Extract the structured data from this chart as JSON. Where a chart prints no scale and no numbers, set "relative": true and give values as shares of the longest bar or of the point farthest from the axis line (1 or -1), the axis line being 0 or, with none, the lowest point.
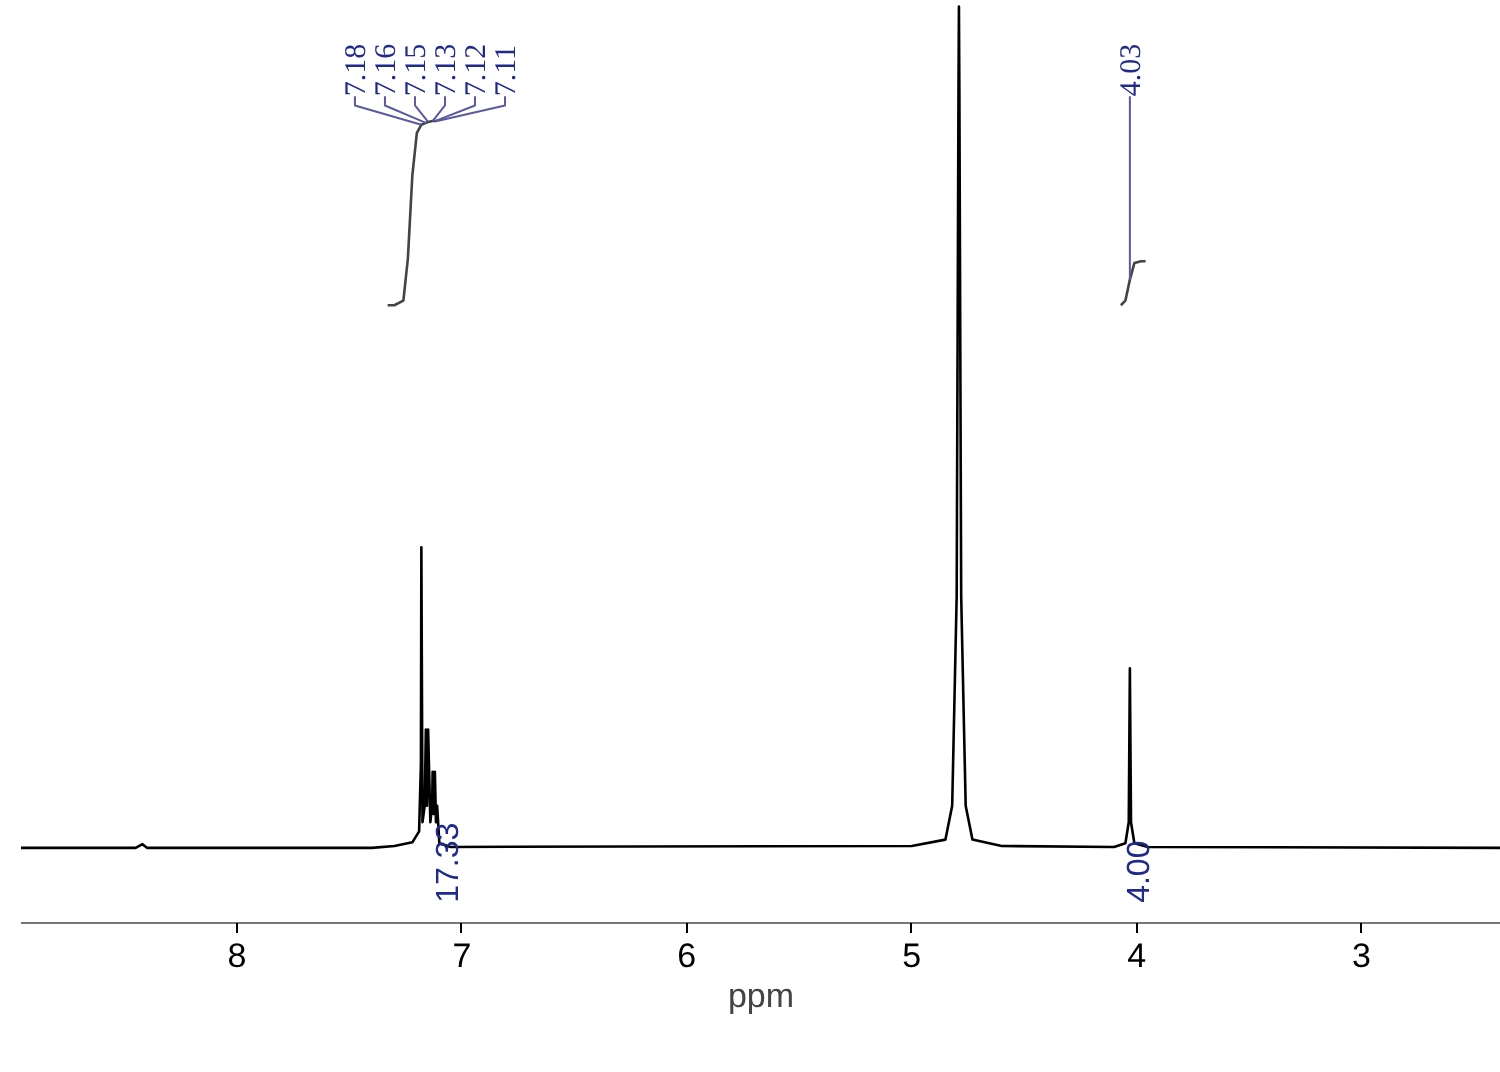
{
  "chart_data": {
    "type": "line",
    "relative": true,
    "xlabel": "ppm",
    "xlim": [
      8.96,
      2.38
    ],
    "xticks": [
      8,
      7,
      6,
      5,
      4,
      3
    ],
    "grid": false,
    "marker": "none",
    "line_style": "solid",
    "series": [
      {
        "color": "#000000",
        "x": [
          8.96,
          8.45,
          8.42,
          8.4,
          7.4,
          7.3,
          7.22,
          7.19,
          7.182,
          7.18,
          7.175,
          7.165,
          7.16,
          7.155,
          7.15,
          7.14,
          7.132,
          7.13,
          7.125,
          7.12,
          7.115,
          7.11,
          7.1,
          7.05,
          5.0,
          4.85,
          4.82,
          4.8,
          4.792,
          4.79,
          4.788,
          4.78,
          4.76,
          4.73,
          4.6,
          4.1,
          4.05,
          4.035,
          4.03,
          4.025,
          4.01,
          3.95,
          2.38
        ],
        "values": [
          0.082,
          0.082,
          0.086,
          0.082,
          0.082,
          0.084,
          0.088,
          0.1,
          0.174,
          0.41,
          0.11,
          0.128,
          0.211,
          0.128,
          0.211,
          0.11,
          0.128,
          0.165,
          0.119,
          0.165,
          0.11,
          0.128,
          0.087,
          0.083,
          0.084,
          0.091,
          0.128,
          0.357,
          0.908,
          1,
          0.908,
          0.357,
          0.128,
          0.091,
          0.084,
          0.083,
          0.087,
          0.11,
          0.278,
          0.11,
          0.087,
          0.083,
          0.082
        ]
      },
      {
        "color": "#444444",
        "x": [
          7.33,
          7.3,
          7.26,
          7.24,
          7.22,
          7.2,
          7.18,
          7.16,
          7.15,
          7.13,
          7.12,
          7.11
        ],
        "values": [
          0.674,
          0.674,
          0.679,
          0.725,
          0.816,
          0.862,
          0.871,
          0.873,
          0.874,
          0.875,
          0.875,
          0.875
        ]
      },
      {
        "color": "#444444",
        "x": [
          4.07,
          4.05,
          4.03,
          4.01,
          3.98,
          3.96
        ],
        "values": [
          0.674,
          0.679,
          0.702,
          0.72,
          0.722,
          0.722
        ]
      }
    ],
    "annotations": [
      {
        "text": "7.18",
        "x": 7.18,
        "y": 0.871
      },
      {
        "text": "7.16",
        "x": 7.16,
        "y": 0.873
      },
      {
        "text": "7.15",
        "x": 7.15,
        "y": 0.874
      },
      {
        "text": "7.13",
        "x": 7.13,
        "y": 0.875
      },
      {
        "text": "7.12",
        "x": 7.12,
        "y": 0.875
      },
      {
        "text": "7.11",
        "x": 7.11,
        "y": 0.875
      },
      {
        "text": "4.03",
        "x": 4.03,
        "y": 0.702
      },
      {
        "text": "17.33",
        "x": 7.07,
        "y": 0.082
      },
      {
        "text": "4.00",
        "x": 4.0,
        "y": 0.082
      }
    ]
  }
}
